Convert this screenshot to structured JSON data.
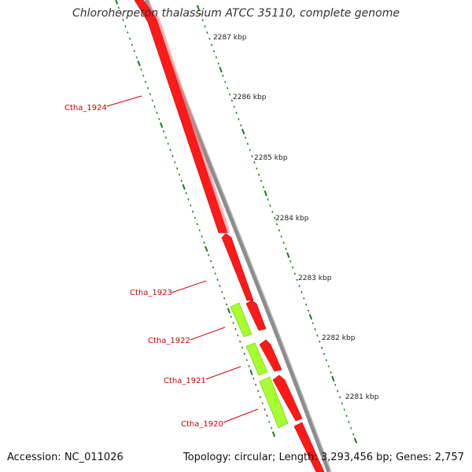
{
  "title": "Chloroherpeton thalassium ATCC 35110, complete genome",
  "footer": {
    "accession": "Accession: NC_011026",
    "summary": "Topology: circular; Length: 3,293,456 bp; Genes: 2,757"
  },
  "colors": {
    "reverse_gene": "#ff1a1a",
    "forward_gene": "#a6ff2e",
    "backbone": "#8c8c8c",
    "ticks": "#1f7a1f",
    "labels": "#d00000"
  },
  "kbp_ticks": [
    "2287 kbp",
    "2286 kbp",
    "2285 kbp",
    "2284 kbp",
    "2283 kbp",
    "2282 kbp",
    "2281 kbp"
  ],
  "genes": [
    {
      "name": "Ctha_1924",
      "strand": "reverse"
    },
    {
      "name": "Ctha_1923",
      "strand": "reverse"
    },
    {
      "name": "Ctha_1922",
      "strand": "forward"
    },
    {
      "name": "Ctha_1921",
      "strand": "forward"
    },
    {
      "name": "Ctha_1920",
      "strand": "forward"
    }
  ]
}
